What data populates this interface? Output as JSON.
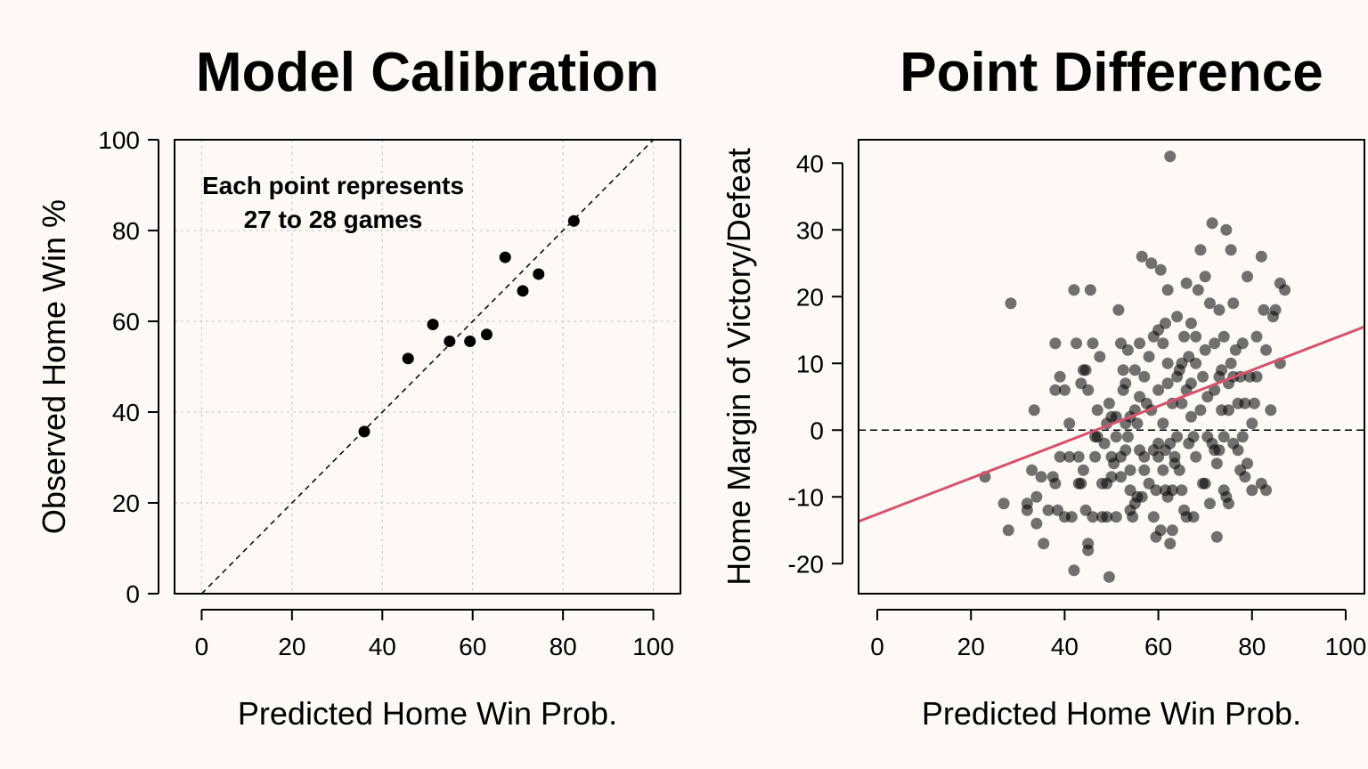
{
  "chart_data": [
    {
      "type": "scatter",
      "title": "Model Calibration",
      "xlabel": "Predicted Home Win Prob.",
      "ylabel": "Observed Home Win %",
      "xlim": [
        -6,
        106
      ],
      "ylim": [
        0,
        100
      ],
      "xticks": [
        0,
        20,
        40,
        60,
        80,
        100
      ],
      "yticks": [
        0,
        20,
        40,
        60,
        80,
        100
      ],
      "grid": true,
      "annotation": [
        "Each point represents",
        "27 to 28 games"
      ],
      "reference_line": "y = x (dashed)",
      "points": [
        {
          "x": 36,
          "y": 35.7
        },
        {
          "x": 45.7,
          "y": 51.8
        },
        {
          "x": 51.2,
          "y": 59.3
        },
        {
          "x": 54.9,
          "y": 55.6
        },
        {
          "x": 59.4,
          "y": 55.6
        },
        {
          "x": 63.1,
          "y": 57.1
        },
        {
          "x": 67.2,
          "y": 74.1
        },
        {
          "x": 71.1,
          "y": 66.7
        },
        {
          "x": 74.6,
          "y": 70.4
        },
        {
          "x": 82.4,
          "y": 82.1
        }
      ]
    },
    {
      "type": "scatter",
      "title": "Point Difference",
      "xlabel": "Predicted Home Win Prob.",
      "ylabel": "Home Margin of Victory/Defeat",
      "xlim": [
        -4,
        104
      ],
      "ylim": [
        -24.5,
        43.5
      ],
      "xticks": [
        0,
        20,
        40,
        60,
        80,
        100
      ],
      "yticks": [
        -20,
        -10,
        0,
        10,
        20,
        30,
        40
      ],
      "grid": false,
      "zero_line": "dashed at y = 0",
      "fit_line": {
        "intercept": -12.6,
        "slope": 0.27,
        "color": "#d6536b"
      },
      "point_color": "rgba(0,0,0,0.55)",
      "points": [
        [
          23,
          -7
        ],
        [
          27,
          -11
        ],
        [
          28,
          -15
        ],
        [
          28.5,
          19
        ],
        [
          32,
          -12
        ],
        [
          32,
          -11
        ],
        [
          33,
          -6
        ],
        [
          33.5,
          3
        ],
        [
          34,
          -14
        ],
        [
          34,
          -10
        ],
        [
          35,
          -7
        ],
        [
          35.5,
          -17
        ],
        [
          36.5,
          -12
        ],
        [
          37.5,
          -7
        ],
        [
          38,
          6
        ],
        [
          38,
          -8
        ],
        [
          38,
          13
        ],
        [
          38.5,
          -12
        ],
        [
          39,
          8
        ],
        [
          39,
          -4
        ],
        [
          40,
          6
        ],
        [
          40,
          -13
        ],
        [
          41,
          -4
        ],
        [
          41,
          1
        ],
        [
          41.5,
          -13
        ],
        [
          42,
          21
        ],
        [
          42,
          -21
        ],
        [
          42.5,
          13
        ],
        [
          43,
          -8
        ],
        [
          43,
          -4
        ],
        [
          43.5,
          7
        ],
        [
          43.5,
          -8
        ],
        [
          44,
          -6
        ],
        [
          44,
          9
        ],
        [
          44.5,
          9
        ],
        [
          44.5,
          -12
        ],
        [
          45,
          6
        ],
        [
          45,
          -17
        ],
        [
          45,
          -18
        ],
        [
          45.5,
          21
        ],
        [
          46,
          -13
        ],
        [
          46,
          13
        ],
        [
          46.5,
          -1
        ],
        [
          46.5,
          -4
        ],
        [
          47,
          -1
        ],
        [
          47,
          3
        ],
        [
          47.5,
          11
        ],
        [
          48,
          -13
        ],
        [
          48,
          -8
        ],
        [
          48.5,
          -2
        ],
        [
          49,
          1
        ],
        [
          49,
          -13
        ],
        [
          49,
          -8
        ],
        [
          49.5,
          4
        ],
        [
          49.5,
          -22
        ],
        [
          50,
          2
        ],
        [
          50,
          -4
        ],
        [
          50,
          -7
        ],
        [
          50.5,
          -5
        ],
        [
          51,
          -13
        ],
        [
          51,
          -1
        ],
        [
          51,
          2
        ],
        [
          51.5,
          18
        ],
        [
          52,
          13
        ],
        [
          52,
          -7
        ],
        [
          52,
          -4
        ],
        [
          52.5,
          9
        ],
        [
          52.5,
          6
        ],
        [
          53,
          1
        ],
        [
          53,
          7
        ],
        [
          53,
          -3
        ],
        [
          53.5,
          -1
        ],
        [
          53.5,
          12
        ],
        [
          54,
          -12
        ],
        [
          54,
          -9
        ],
        [
          54,
          -6
        ],
        [
          54,
          2
        ],
        [
          54.5,
          -13
        ],
        [
          55,
          9
        ],
        [
          55,
          3
        ],
        [
          55,
          -11
        ],
        [
          55.5,
          -10
        ],
        [
          55.5,
          1
        ],
        [
          56,
          -3
        ],
        [
          56,
          13
        ],
        [
          56,
          5
        ],
        [
          56.5,
          -10
        ],
        [
          56.5,
          26
        ],
        [
          57,
          -6
        ],
        [
          57,
          8
        ],
        [
          57,
          -4
        ],
        [
          57.5,
          4
        ],
        [
          58,
          11
        ],
        [
          58,
          -8
        ],
        [
          58.5,
          25
        ],
        [
          58.5,
          3
        ],
        [
          59,
          14
        ],
        [
          59,
          -3
        ],
        [
          59,
          -13
        ],
        [
          59.5,
          -9
        ],
        [
          59.5,
          -16
        ],
        [
          60,
          15
        ],
        [
          60,
          -4
        ],
        [
          60,
          6
        ],
        [
          60,
          -2
        ],
        [
          60.5,
          24
        ],
        [
          60.5,
          -15
        ],
        [
          61,
          -6
        ],
        [
          61,
          1
        ],
        [
          61,
          13
        ],
        [
          61.5,
          -9
        ],
        [
          61.5,
          -3
        ],
        [
          61.5,
          16
        ],
        [
          62,
          7
        ],
        [
          62,
          21
        ],
        [
          62,
          -10
        ],
        [
          62,
          10
        ],
        [
          62.5,
          41
        ],
        [
          62.5,
          -2
        ],
        [
          62.5,
          -17
        ],
        [
          63,
          -15
        ],
        [
          63,
          4
        ],
        [
          63,
          -9
        ],
        [
          63.5,
          -5
        ],
        [
          63.5,
          -4
        ],
        [
          64,
          17
        ],
        [
          64,
          8
        ],
        [
          64,
          -1
        ],
        [
          64.5,
          -6
        ],
        [
          64.5,
          9
        ],
        [
          65,
          10
        ],
        [
          65,
          4
        ],
        [
          65,
          -9
        ],
        [
          65.5,
          14
        ],
        [
          65.5,
          -12
        ],
        [
          66,
          -13
        ],
        [
          66,
          6
        ],
        [
          66,
          22
        ],
        [
          66.5,
          11
        ],
        [
          66.5,
          -2
        ],
        [
          67,
          16
        ],
        [
          67,
          2
        ],
        [
          67,
          7
        ],
        [
          67.5,
          -1
        ],
        [
          67.5,
          -13
        ],
        [
          68,
          14
        ],
        [
          68,
          10
        ],
        [
          68,
          -4
        ],
        [
          68.5,
          21
        ],
        [
          69,
          27
        ],
        [
          69,
          3
        ],
        [
          69.5,
          -8
        ],
        [
          69.5,
          8
        ],
        [
          70,
          -8
        ],
        [
          70,
          12
        ],
        [
          70,
          23
        ],
        [
          70.5,
          -1
        ],
        [
          70.5,
          5
        ],
        [
          71,
          19
        ],
        [
          71,
          -11
        ],
        [
          71.5,
          31
        ],
        [
          71.5,
          -2
        ],
        [
          72,
          -3
        ],
        [
          72,
          13
        ],
        [
          72,
          6
        ],
        [
          72.5,
          -5
        ],
        [
          72.5,
          -16
        ],
        [
          73,
          18
        ],
        [
          73,
          -3
        ],
        [
          73,
          8
        ],
        [
          73.5,
          9
        ],
        [
          73.5,
          3
        ],
        [
          74,
          -9
        ],
        [
          74,
          14
        ],
        [
          74,
          -1
        ],
        [
          74.5,
          30
        ],
        [
          74.5,
          -10
        ],
        [
          75,
          -11
        ],
        [
          75,
          3
        ],
        [
          75,
          7
        ],
        [
          75.5,
          27
        ],
        [
          75.5,
          10
        ],
        [
          76,
          -2
        ],
        [
          76,
          19
        ],
        [
          76,
          8
        ],
        [
          76.5,
          12
        ],
        [
          77,
          4
        ],
        [
          77,
          -3
        ],
        [
          77.5,
          -6
        ],
        [
          77.5,
          8
        ],
        [
          78,
          13
        ],
        [
          78,
          -1
        ],
        [
          78.5,
          -7
        ],
        [
          78.5,
          4
        ],
        [
          79,
          23
        ],
        [
          79,
          -5
        ],
        [
          79.5,
          8
        ],
        [
          80,
          1
        ],
        [
          80,
          -9
        ],
        [
          80.5,
          4
        ],
        [
          81,
          14
        ],
        [
          81,
          8
        ],
        [
          82,
          26
        ],
        [
          82,
          -8
        ],
        [
          82.5,
          18
        ],
        [
          83,
          12
        ],
        [
          83,
          -9
        ],
        [
          84,
          3
        ],
        [
          84.5,
          17
        ],
        [
          85,
          18
        ],
        [
          86,
          22
        ],
        [
          86,
          10
        ],
        [
          87,
          21
        ]
      ]
    }
  ]
}
